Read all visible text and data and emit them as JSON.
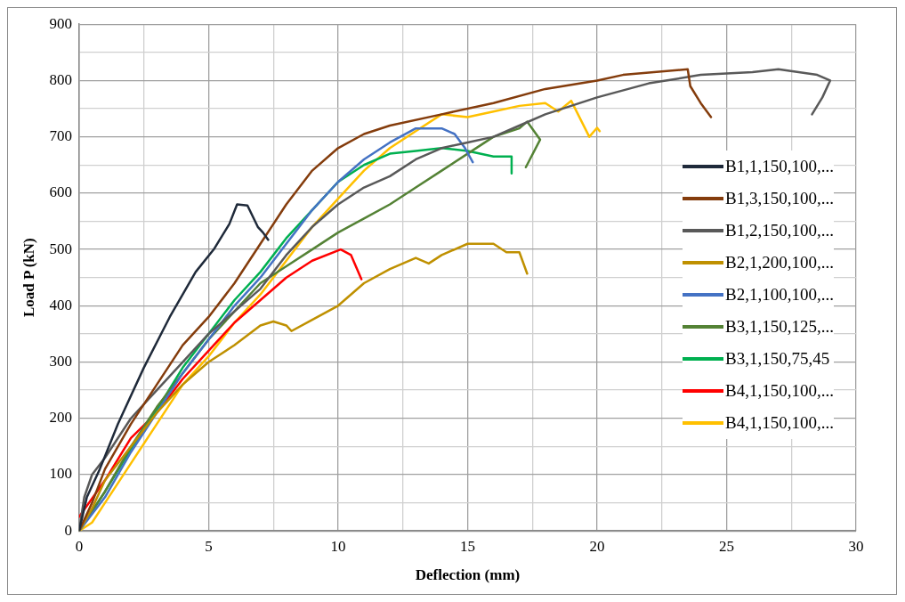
{
  "chart_data": {
    "type": "line",
    "xlabel": "Deflection (mm)",
    "ylabel": "Load P (kN)",
    "xlim": [
      0,
      30
    ],
    "ylim": [
      0,
      900
    ],
    "xticks": [
      0,
      {
        "value": 2.5,
        "label": null
      },
      5,
      {
        "value": 7.5,
        "label": null
      },
      10,
      {
        "value": 12.5,
        "label": null
      },
      15,
      {
        "value": 17.5,
        "label": null
      },
      20,
      {
        "value": 22.5,
        "label": null
      },
      25,
      {
        "value": 27.5,
        "label": null
      },
      30
    ],
    "yticks": [
      0,
      {
        "value": 50,
        "label": null
      },
      100,
      {
        "value": 150,
        "label": null
      },
      200,
      {
        "value": 250,
        "label": null
      },
      300,
      {
        "value": 350,
        "label": null
      },
      400,
      {
        "value": 450,
        "label": null
      },
      500,
      {
        "value": 550,
        "label": null
      },
      600,
      {
        "value": 650,
        "label": null
      },
      700,
      {
        "value": 750,
        "label": null
      },
      800,
      {
        "value": 850,
        "label": null
      },
      900
    ],
    "grid": true,
    "legend": "right",
    "marker": "none",
    "line_style": "solid",
    "series": [
      {
        "name": "B1,1,150,100,...",
        "color": "#1f2a3a",
        "x": [
          0,
          0.3,
          0.8,
          1.5,
          2.5,
          3.5,
          4.5,
          5.2,
          5.8,
          6.1,
          6.5,
          6.9,
          7.1,
          7.3
        ],
        "values": [
          0,
          60,
          110,
          190,
          290,
          380,
          460,
          500,
          545,
          580,
          578,
          540,
          530,
          517
        ]
      },
      {
        "name": "B1,3,150,100,...",
        "color": "#843c0c",
        "x": [
          0,
          0.5,
          1,
          2,
          3,
          4,
          5,
          6,
          7,
          8,
          9,
          10,
          11,
          12,
          14,
          16,
          18,
          20,
          21,
          23.5,
          23.6,
          24,
          24.4
        ],
        "values": [
          0,
          50,
          110,
          190,
          260,
          330,
          380,
          440,
          510,
          580,
          640,
          680,
          705,
          720,
          740,
          760,
          785,
          800,
          810,
          820,
          790,
          760,
          735
        ]
      },
      {
        "name": "B1,2,150,100,...",
        "color": "#595959",
        "x": [
          0,
          0.2,
          0.5,
          1,
          2,
          3,
          4,
          5,
          6,
          7,
          8,
          9,
          10,
          11,
          12,
          13,
          14,
          15,
          16,
          17,
          18,
          20,
          22,
          24,
          26,
          27,
          28.5,
          29,
          28.7,
          28.3
        ],
        "values": [
          0,
          60,
          100,
          130,
          200,
          250,
          300,
          350,
          390,
          430,
          490,
          540,
          580,
          610,
          630,
          660,
          680,
          690,
          700,
          720,
          740,
          770,
          795,
          810,
          815,
          820,
          810,
          800,
          770,
          740
        ]
      },
      {
        "name": "B2,1,200,100,...",
        "color": "#bf9000",
        "x": [
          0,
          0.5,
          1,
          2,
          3,
          4,
          5,
          6,
          7,
          7.5,
          8,
          8.2,
          9,
          10,
          11,
          12,
          13,
          13.5,
          14,
          15,
          16,
          16.5,
          17,
          17.3
        ],
        "values": [
          0,
          40,
          90,
          150,
          210,
          260,
          300,
          330,
          365,
          372,
          365,
          355,
          375,
          400,
          440,
          465,
          485,
          475,
          490,
          510,
          510,
          495,
          495,
          457
        ]
      },
      {
        "name": "B2,1,100,100,...",
        "color": "#4472c4",
        "x": [
          0,
          1,
          2,
          3,
          4,
          5,
          6,
          7,
          8,
          9,
          10,
          11,
          12,
          13,
          14,
          14.5,
          14.9,
          15.2
        ],
        "values": [
          0,
          60,
          140,
          210,
          280,
          340,
          400,
          450,
          510,
          570,
          620,
          660,
          690,
          715,
          715,
          705,
          680,
          655
        ]
      },
      {
        "name": "B3,1,150,125,...",
        "color": "#548235",
        "x": [
          0,
          1,
          2,
          3,
          4,
          5,
          6,
          7,
          8,
          9,
          10,
          11,
          12,
          13,
          14,
          15,
          16,
          17,
          17.3,
          17.8,
          17.25
        ],
        "values": [
          0,
          70,
          150,
          220,
          280,
          340,
          390,
          440,
          470,
          500,
          530,
          555,
          580,
          610,
          640,
          670,
          700,
          715,
          727,
          695,
          646
        ]
      },
      {
        "name": "B3,1,150,75,45",
        "color": "#00b050",
        "x": [
          0,
          1,
          2,
          3,
          4,
          5,
          6,
          7,
          8,
          9,
          10,
          11,
          12,
          13,
          14,
          15,
          16,
          16.7,
          16.7
        ],
        "values": [
          0,
          70,
          145,
          215,
          290,
          350,
          410,
          460,
          520,
          570,
          620,
          650,
          670,
          675,
          680,
          675,
          665,
          665,
          635
        ]
      },
      {
        "name": "B4,1,150,100,...",
        "color": "#ff0000",
        "x": [
          0,
          1,
          2,
          3,
          4,
          5,
          6,
          7,
          8,
          9,
          10.1,
          10.5,
          10.9
        ],
        "values": [
          25,
          90,
          165,
          210,
          270,
          320,
          370,
          410,
          450,
          480,
          500,
          490,
          447
        ]
      },
      {
        "name": "B4,1,150,100,...",
        "color": "#ffc000",
        "x": [
          0,
          0.5,
          1,
          2,
          3,
          4,
          5,
          6,
          7,
          8,
          9,
          10,
          11,
          12,
          13,
          14,
          15,
          16,
          17,
          18,
          18.5,
          19,
          19.7,
          20,
          20.1
        ],
        "values": [
          0,
          15,
          50,
          120,
          190,
          260,
          310,
          370,
          420,
          480,
          540,
          590,
          640,
          680,
          710,
          740,
          735,
          745,
          755,
          760,
          745,
          764,
          700,
          716,
          710
        ]
      }
    ]
  }
}
